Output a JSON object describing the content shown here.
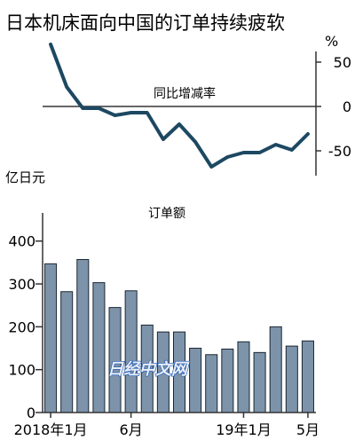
{
  "title": "日本机床面向中国的订单持续疲软",
  "watermark": "日经中文网",
  "colors": {
    "line": "#1d4862",
    "bar_fill": "#7d93a9",
    "bar_stroke": "#1b2733",
    "axis": "#333333"
  },
  "chart_data": [
    {
      "type": "line",
      "title": "同比增减率",
      "unit": "%",
      "yticks": [
        50,
        0,
        -50
      ],
      "ylim": [
        -80,
        80
      ],
      "x": [
        "2018-01",
        "2018-02",
        "2018-03",
        "2018-04",
        "2018-05",
        "2018-06",
        "2018-07",
        "2018-08",
        "2018-09",
        "2018-10",
        "2018-11",
        "2018-12",
        "2019-01",
        "2019-02",
        "2019-03",
        "2019-04",
        "2019-05"
      ],
      "values": [
        70,
        22,
        -2,
        -2,
        -10,
        -7,
        -7,
        -37,
        -20,
        -40,
        -68,
        -57,
        -52,
        -52,
        -43,
        -49,
        -31
      ]
    },
    {
      "type": "bar",
      "title": "订单额",
      "unit": "亿日元",
      "yticks": [
        0,
        100,
        200,
        300,
        400
      ],
      "ylim": [
        0,
        445
      ],
      "categories": [
        "2018-01",
        "2018-02",
        "2018-03",
        "2018-04",
        "2018-05",
        "2018-06",
        "2018-07",
        "2018-08",
        "2018-09",
        "2018-10",
        "2018-11",
        "2018-12",
        "2019-01",
        "2019-02",
        "2019-03",
        "2019-04",
        "2019-05"
      ],
      "values": [
        347,
        282,
        357,
        303,
        245,
        284,
        204,
        188,
        188,
        150,
        135,
        148,
        165,
        140,
        200,
        155,
        167
      ],
      "xtick_labels": [
        {
          "index": 0,
          "text": "2018年1月"
        },
        {
          "index": 5,
          "text": "6月"
        },
        {
          "index": 12,
          "text": "19年1月"
        },
        {
          "index": 16,
          "text": "5月"
        }
      ]
    }
  ]
}
